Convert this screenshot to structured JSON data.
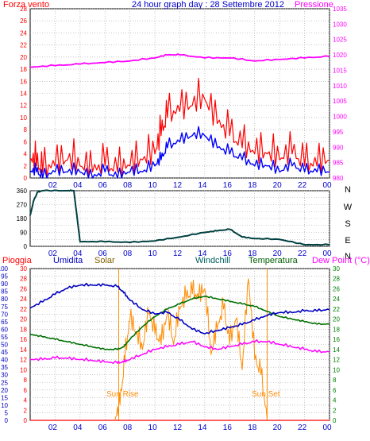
{
  "header": {
    "left_label": "Forza vento",
    "center_title": "24 hour graph day : 28 Settembre 2012",
    "right_label": "Pressione"
  },
  "middle_panel": {
    "compass": [
      "N",
      "W",
      "S",
      "E",
      "N"
    ]
  },
  "bottom_legend": {
    "pioggia": "Pioggia",
    "umidita": "Umidita",
    "solar": "Solar",
    "windchill": "Windchill",
    "temperatura": "Temperatura",
    "dewpoint": "Dew Point (°C)"
  },
  "annotations": {
    "sun_rise": "Sun Rise",
    "sun_set": "Sun Set"
  },
  "colors": {
    "wind": "#ff0000",
    "gust": "#0000ff",
    "pressure": "#ff00ff",
    "direction": "#004040",
    "humidity": "#0000c0",
    "solar": "#ff8c00",
    "temperature": "#007000",
    "dewpoint": "#ff00ff",
    "rain": "#ff0000",
    "grid": "#a0a0a0",
    "axis_label_left": "#ff0000",
    "axis_label_right": "#ff00ff",
    "axis_label_green": "#008000"
  },
  "chart_data": [
    {
      "type": "line",
      "title": "24 hour graph day : 28 Settembre 2012",
      "x_ticks": [
        "02",
        "04",
        "06",
        "08",
        "10",
        "12",
        "14",
        "16",
        "18",
        "20",
        "22",
        "00"
      ],
      "xlim": [
        0,
        24
      ],
      "left_axis": {
        "label": "Forza vento",
        "ylim": [
          0,
          28
        ],
        "ticks": [
          0,
          2,
          4,
          6,
          8,
          10,
          12,
          14,
          16,
          18,
          20,
          22,
          24,
          26,
          28
        ]
      },
      "right_axis": {
        "label": "Pressione",
        "ylim": [
          980,
          1035
        ],
        "ticks": [
          980,
          985,
          990,
          995,
          1000,
          1005,
          1010,
          1015,
          1020,
          1025,
          1030,
          1035
        ]
      },
      "grid": true,
      "series": [
        {
          "name": "Pressione",
          "axis": "right",
          "x": [
            0,
            2,
            4,
            6,
            8,
            10,
            11,
            12,
            14,
            16,
            18,
            20,
            22,
            24
          ],
          "values": [
            1016,
            1016.5,
            1017,
            1017.5,
            1018,
            1019,
            1020,
            1020,
            1019,
            1019,
            1018,
            1018.5,
            1019,
            1019.5
          ]
        },
        {
          "name": "Forza vento",
          "axis": "left",
          "x": [
            0,
            0.5,
            1,
            2,
            3,
            4,
            5,
            6,
            7,
            8,
            9,
            10,
            10.5,
            11,
            12,
            13,
            14,
            15,
            16,
            17,
            18,
            19,
            20,
            21,
            22,
            23,
            24
          ],
          "values": [
            3,
            2,
            1,
            2,
            3,
            2,
            1,
            2,
            1,
            2,
            3,
            4,
            7,
            10,
            11,
            12,
            13,
            9,
            7,
            5,
            4,
            4,
            3,
            4,
            2,
            2,
            3
          ]
        },
        {
          "x": [
            0,
            0.5,
            1,
            2,
            3,
            4,
            5,
            6,
            7,
            8,
            9,
            10,
            10.5,
            11,
            12,
            13,
            14,
            15,
            16,
            17,
            18,
            19,
            20,
            21,
            22,
            23,
            24
          ],
          "values": [
            1,
            1,
            0,
            1,
            1,
            1,
            0,
            1,
            0,
            1,
            1,
            2,
            3,
            5,
            6,
            7,
            7,
            5,
            4,
            3,
            2,
            2,
            1,
            2,
            1,
            1,
            1
          ]
        }
      ]
    },
    {
      "type": "line",
      "x_ticks": [
        "02",
        "04",
        "06",
        "08",
        "10",
        "12",
        "14",
        "16",
        "18",
        "20",
        "22",
        "00"
      ],
      "xlim": [
        0,
        24
      ],
      "ylim": [
        0,
        360
      ],
      "ticks": [
        0,
        45,
        90,
        135,
        180,
        225,
        270,
        315,
        360
      ],
      "right_labels": [
        "N",
        "W",
        "S",
        "E",
        "N"
      ],
      "grid": true,
      "series": [
        {
          "x": [
            0,
            0.3,
            0.6,
            1,
            3,
            3.5,
            4,
            6,
            8,
            10,
            12,
            14,
            15,
            16,
            17,
            18,
            20,
            22,
            24
          ],
          "values": [
            200,
            300,
            350,
            360,
            360,
            360,
            30,
            30,
            25,
            35,
            60,
            90,
            100,
            110,
            60,
            50,
            45,
            10,
            10
          ]
        }
      ]
    },
    {
      "type": "line",
      "x_ticks": [
        "02",
        "04",
        "06",
        "08",
        "10",
        "12",
        "14",
        "16",
        "18",
        "20",
        "22",
        "00"
      ],
      "xlim": [
        0,
        24
      ],
      "left_axis": {
        "label": "Pioggia / Umidita",
        "ylim": [
          0,
          100
        ],
        "ticks": [
          0,
          5,
          10,
          15,
          20,
          25,
          30,
          35,
          40,
          45,
          50,
          55,
          60,
          65,
          70,
          75,
          80,
          85,
          90,
          95,
          100
        ]
      },
      "left_axis_2": {
        "label": "Solar",
        "ylim": [
          0,
          30
        ],
        "ticks": [
          0,
          2,
          4,
          6,
          8,
          10,
          12,
          14,
          16,
          18,
          20,
          22,
          24,
          26,
          28,
          30
        ]
      },
      "right_axis": {
        "label": "Dew Point (°C)",
        "ylim": [
          0,
          30
        ],
        "ticks": [
          0,
          2,
          4,
          6,
          8,
          10,
          12,
          14,
          16,
          18,
          20,
          22,
          24,
          26,
          28,
          30
        ]
      },
      "grid": true,
      "series": [
        {
          "name": "Umidita",
          "axis": "left",
          "x": [
            0,
            1,
            2,
            3,
            4,
            5,
            6,
            7,
            7.5,
            8,
            9,
            10,
            11,
            12,
            13,
            14,
            15,
            16,
            17,
            18,
            19,
            20,
            21,
            22,
            23,
            24
          ],
          "values": [
            74,
            78,
            83,
            87,
            89,
            89,
            89,
            88,
            84,
            79,
            73,
            70,
            71,
            66,
            60,
            57,
            59,
            61,
            63,
            66,
            69,
            71,
            71,
            72,
            72,
            73
          ]
        },
        {
          "name": "Temperatura",
          "axis": "right",
          "x": [
            0,
            1,
            2,
            3,
            4,
            5,
            6,
            7,
            7.5,
            8,
            9,
            10,
            11,
            12,
            13,
            14,
            15,
            16,
            17,
            18,
            19,
            20,
            21,
            22,
            23,
            24
          ],
          "values": [
            17,
            16.5,
            16,
            15.5,
            15,
            14.5,
            14,
            14,
            14.5,
            16,
            18.5,
            20.5,
            22,
            23,
            24,
            24.5,
            24,
            23.5,
            23,
            22.5,
            21.5,
            20.5,
            20,
            19.5,
            19,
            19
          ]
        },
        {
          "name": "Dew Point (°C)",
          "axis": "right",
          "x": [
            0,
            1,
            2,
            3,
            4,
            5,
            6,
            7,
            7.5,
            8,
            9,
            10,
            11,
            12,
            13,
            14,
            15,
            16,
            17,
            18,
            19,
            20,
            21,
            22,
            23,
            24
          ],
          "values": [
            12,
            12,
            12.3,
            12.2,
            12,
            11.8,
            11.5,
            11.3,
            11.5,
            12,
            13,
            14,
            14.5,
            15,
            15.5,
            14.5,
            14,
            14.5,
            15,
            15.5,
            15.5,
            15,
            14.5,
            14,
            13.5,
            13.5
          ]
        },
        {
          "name": "Solar",
          "axis": "left2",
          "x": [
            6.8,
            7.2,
            7.6,
            8,
            8.5,
            9,
            9.5,
            10,
            10.5,
            11,
            11.5,
            12,
            12.5,
            13,
            13.5,
            14,
            14.5,
            15,
            15.5,
            16,
            16.5,
            17,
            17.5,
            18,
            18.5,
            19
          ],
          "values": [
            0,
            3,
            12,
            20,
            17,
            14,
            21,
            17,
            15,
            21,
            15,
            22,
            24,
            25,
            24,
            26,
            13,
            18,
            22,
            15,
            20,
            10,
            28,
            12,
            9,
            0
          ]
        },
        {
          "name": "Pioggia",
          "axis": "left",
          "x": [
            0,
            24
          ],
          "values": [
            0,
            0
          ]
        }
      ]
    }
  ]
}
